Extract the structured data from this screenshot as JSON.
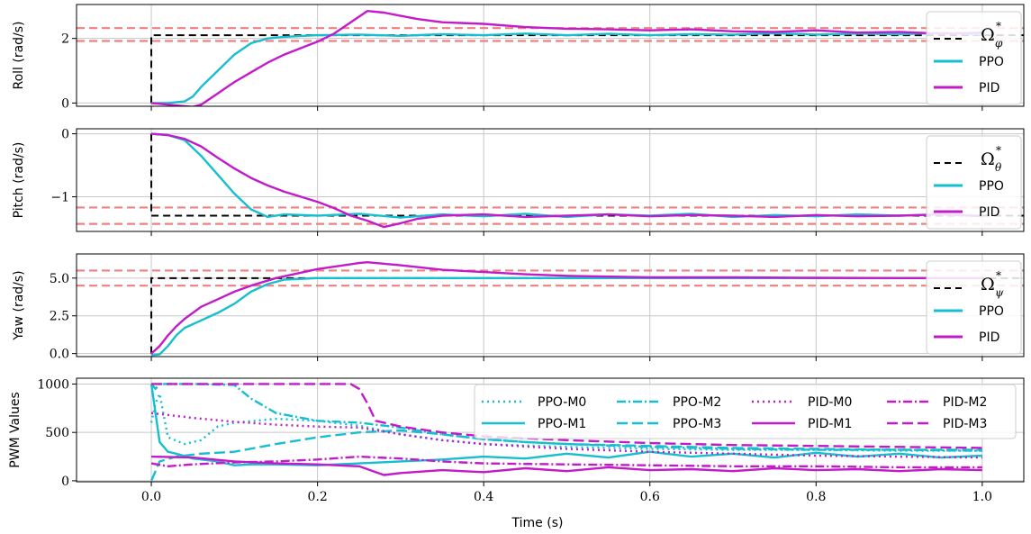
{
  "figure": {
    "xlabel": "Time (s)",
    "x_ticks": [
      "0.0",
      "0.2",
      "0.4",
      "0.6",
      "0.8",
      "1.0"
    ]
  },
  "chart_data": [
    {
      "type": "line",
      "ylabel": "Roll (rad/s)",
      "xlim": [
        -0.09,
        1.05
      ],
      "ylim": [
        -0.1,
        3.05
      ],
      "y_ticks": [
        0,
        2
      ],
      "y_tick_labels": [
        "0",
        "2"
      ],
      "grid": true,
      "legend_position": "right",
      "legend": {
        "ref_symbol": "Ω",
        "ref_superscript": "*",
        "ref_subscript": "φ",
        "items": [
          "PPO",
          "PID"
        ]
      },
      "reference": {
        "value": 2.1,
        "step_time": 0.0
      },
      "tolerance_band": [
        1.92,
        2.32
      ],
      "series": [
        {
          "name": "PPO",
          "color": "#17becf",
          "x": [
            0,
            0.02,
            0.04,
            0.05,
            0.06,
            0.08,
            0.1,
            0.12,
            0.14,
            0.16,
            0.2,
            0.25,
            0.3,
            0.35,
            0.4,
            0.45,
            0.5,
            0.55,
            0.6,
            0.65,
            0.7,
            0.75,
            0.8,
            0.85,
            0.9,
            0.95,
            1.0
          ],
          "y": [
            0,
            0,
            0.05,
            0.2,
            0.5,
            1.0,
            1.5,
            1.85,
            2.0,
            2.05,
            2.1,
            2.12,
            2.08,
            2.13,
            2.1,
            2.15,
            2.1,
            2.14,
            2.1,
            2.13,
            2.12,
            2.16,
            2.12,
            2.15,
            2.13,
            2.17,
            2.12
          ]
        },
        {
          "name": "PID",
          "color": "#c21bc9",
          "x": [
            0,
            0.02,
            0.04,
            0.05,
            0.06,
            0.08,
            0.1,
            0.12,
            0.14,
            0.16,
            0.18,
            0.2,
            0.22,
            0.24,
            0.26,
            0.28,
            0.3,
            0.32,
            0.35,
            0.4,
            0.45,
            0.5,
            0.55,
            0.6,
            0.65,
            0.7,
            0.75,
            0.8,
            0.85,
            0.9,
            0.95,
            1.0
          ],
          "y": [
            0,
            -0.05,
            -0.1,
            -0.12,
            -0.05,
            0.3,
            0.65,
            0.95,
            1.25,
            1.5,
            1.7,
            1.9,
            2.15,
            2.5,
            2.85,
            2.8,
            2.7,
            2.6,
            2.5,
            2.45,
            2.35,
            2.3,
            2.28,
            2.25,
            2.28,
            2.22,
            2.2,
            2.25,
            2.18,
            2.2,
            2.15,
            2.18
          ]
        }
      ]
    },
    {
      "type": "line",
      "ylabel": "Pitch (rad/s)",
      "xlim": [
        -0.09,
        1.05
      ],
      "ylim": [
        -1.55,
        0.08
      ],
      "y_ticks": [
        0,
        -1
      ],
      "y_tick_labels": [
        "0",
        "−1"
      ],
      "grid": true,
      "legend_position": "right",
      "legend": {
        "ref_symbol": "Ω",
        "ref_superscript": "*",
        "ref_subscript": "θ",
        "items": [
          "PPO",
          "PID"
        ]
      },
      "reference": {
        "value": -1.3,
        "step_time": 0.0
      },
      "tolerance_band": [
        -1.17,
        -1.43
      ],
      "series": [
        {
          "name": "PPO",
          "color": "#17becf",
          "x": [
            0,
            0.02,
            0.04,
            0.06,
            0.08,
            0.1,
            0.12,
            0.14,
            0.16,
            0.2,
            0.25,
            0.3,
            0.35,
            0.4,
            0.45,
            0.5,
            0.55,
            0.6,
            0.65,
            0.7,
            0.75,
            0.8,
            0.85,
            0.9,
            0.95,
            1.0
          ],
          "y": [
            0,
            -0.02,
            -0.1,
            -0.35,
            -0.65,
            -0.95,
            -1.2,
            -1.32,
            -1.28,
            -1.3,
            -1.27,
            -1.33,
            -1.28,
            -1.31,
            -1.27,
            -1.32,
            -1.28,
            -1.3,
            -1.27,
            -1.32,
            -1.29,
            -1.31,
            -1.28,
            -1.3,
            -1.28,
            -1.3
          ]
        },
        {
          "name": "PID",
          "color": "#c21bc9",
          "x": [
            0,
            0.02,
            0.04,
            0.06,
            0.08,
            0.1,
            0.12,
            0.14,
            0.16,
            0.18,
            0.2,
            0.22,
            0.24,
            0.26,
            0.28,
            0.3,
            0.32,
            0.35,
            0.4,
            0.45,
            0.5,
            0.55,
            0.6,
            0.65,
            0.7,
            0.75,
            0.8,
            0.85,
            0.9,
            0.95,
            1.0
          ],
          "y": [
            0,
            -0.02,
            -0.08,
            -0.2,
            -0.38,
            -0.55,
            -0.7,
            -0.82,
            -0.92,
            -1.0,
            -1.08,
            -1.18,
            -1.3,
            -1.38,
            -1.48,
            -1.42,
            -1.35,
            -1.3,
            -1.28,
            -1.32,
            -1.3,
            -1.28,
            -1.31,
            -1.29,
            -1.3,
            -1.32,
            -1.29,
            -1.31,
            -1.3,
            -1.28,
            -1.31
          ]
        }
      ]
    },
    {
      "type": "line",
      "ylabel": "Yaw (rad/s)",
      "xlim": [
        -0.09,
        1.05
      ],
      "ylim": [
        -0.2,
        6.6
      ],
      "y_ticks": [
        0,
        2.5,
        5
      ],
      "y_tick_labels": [
        "0.0",
        "2.5",
        "5.0"
      ],
      "grid": true,
      "legend_position": "right",
      "legend": {
        "ref_symbol": "Ω",
        "ref_superscript": "*",
        "ref_subscript": "ψ",
        "items": [
          "PPO",
          "PID"
        ]
      },
      "reference": {
        "value": 5.0,
        "step_time": 0.0
      },
      "tolerance_band": [
        4.5,
        5.5
      ],
      "series": [
        {
          "name": "PPO",
          "color": "#17becf",
          "x": [
            0,
            0.01,
            0.02,
            0.03,
            0.04,
            0.06,
            0.08,
            0.1,
            0.12,
            0.14,
            0.16,
            0.2,
            0.3,
            0.4,
            0.5,
            0.6,
            0.7,
            0.8,
            0.9,
            1.0
          ],
          "y": [
            -0.1,
            -0.05,
            0.5,
            1.2,
            1.7,
            2.2,
            2.7,
            3.3,
            4.1,
            4.6,
            4.9,
            5.0,
            5.0,
            5.0,
            5.0,
            5.0,
            5.0,
            5.0,
            5.0,
            5.0
          ]
        },
        {
          "name": "PID",
          "color": "#c21bc9",
          "x": [
            0,
            0.01,
            0.02,
            0.03,
            0.04,
            0.06,
            0.08,
            0.1,
            0.12,
            0.15,
            0.2,
            0.25,
            0.26,
            0.3,
            0.35,
            0.4,
            0.45,
            0.5,
            0.6,
            0.7,
            0.8,
            0.9,
            1.0
          ],
          "y": [
            0,
            0.5,
            1.2,
            1.8,
            2.3,
            3.1,
            3.6,
            4.1,
            4.5,
            5.0,
            5.6,
            6.0,
            6.05,
            5.85,
            5.55,
            5.4,
            5.25,
            5.15,
            5.05,
            5.05,
            5.02,
            5.0,
            5.0
          ]
        }
      ]
    },
    {
      "type": "line",
      "ylabel": "PWM Values",
      "xlim": [
        -0.09,
        1.05
      ],
      "ylim": [
        -10,
        1060
      ],
      "y_ticks": [
        0,
        500,
        1000
      ],
      "y_tick_labels": [
        "0",
        "500",
        "1000"
      ],
      "grid": true,
      "legend_position": "top-right",
      "legend": {
        "items": [
          "PPO-M0",
          "PPO-M1",
          "PPO-M2",
          "PPO-M3",
          "PID-M0",
          "PID-M1",
          "PID-M2",
          "PID-M3"
        ]
      },
      "series": [
        {
          "name": "PPO-M0",
          "color": "#17becf",
          "dash": "2,4",
          "x": [
            0,
            0.005,
            0.01,
            0.02,
            0.04,
            0.06,
            0.08,
            0.1,
            0.15,
            0.2,
            0.25,
            0.3,
            0.35,
            0.4,
            0.5,
            0.6,
            0.7,
            0.8,
            0.9,
            1.0
          ],
          "y": [
            600,
            800,
            900,
            450,
            380,
            420,
            560,
            600,
            640,
            620,
            570,
            480,
            420,
            380,
            350,
            330,
            320,
            320,
            310,
            310
          ]
        },
        {
          "name": "PPO-M1",
          "color": "#17becf",
          "dash": "",
          "x": [
            0,
            0.005,
            0.01,
            0.02,
            0.03,
            0.05,
            0.08,
            0.1,
            0.12,
            0.15,
            0.2,
            0.25,
            0.3,
            0.35,
            0.4,
            0.45,
            0.5,
            0.55,
            0.6,
            0.65,
            0.7,
            0.75,
            0.8,
            0.85,
            0.9,
            0.95,
            1.0
          ],
          "y": [
            1000,
            700,
            400,
            300,
            280,
            230,
            200,
            160,
            170,
            170,
            160,
            180,
            200,
            220,
            250,
            230,
            280,
            240,
            300,
            250,
            280,
            240,
            290,
            250,
            280,
            240,
            260
          ]
        },
        {
          "name": "PPO-M2",
          "color": "#17becf",
          "dash": "10,3,2,3",
          "x": [
            0,
            0.005,
            0.01,
            0.05,
            0.1,
            0.12,
            0.15,
            0.2,
            0.25,
            0.3,
            0.35,
            0.4,
            0.45,
            0.5,
            0.6,
            0.7,
            0.8,
            0.9,
            1.0
          ],
          "y": [
            1000,
            950,
            1000,
            1000,
            990,
            850,
            700,
            620,
            600,
            550,
            480,
            430,
            400,
            380,
            350,
            330,
            320,
            320,
            310
          ]
        },
        {
          "name": "PPO-M3",
          "color": "#17becf",
          "dash": "12,5",
          "x": [
            0,
            0.01,
            0.03,
            0.06,
            0.1,
            0.15,
            0.2,
            0.25,
            0.3,
            0.35,
            0.4,
            0.45,
            0.5,
            0.6,
            0.7,
            0.8,
            0.9,
            1.0
          ],
          "y": [
            0,
            200,
            250,
            280,
            300,
            380,
            450,
            500,
            520,
            480,
            430,
            400,
            380,
            360,
            340,
            330,
            320,
            320
          ]
        },
        {
          "name": "PID-M0",
          "color": "#c21bc9",
          "dash": "2,4",
          "x": [
            0,
            0.02,
            0.05,
            0.1,
            0.15,
            0.2,
            0.25,
            0.3,
            0.35,
            0.4,
            0.5,
            0.6,
            0.7,
            0.8,
            0.9,
            1.0
          ],
          "y": [
            700,
            680,
            650,
            610,
            580,
            560,
            550,
            480,
            420,
            380,
            330,
            300,
            280,
            260,
            250,
            240
          ]
        },
        {
          "name": "PID-M1",
          "color": "#c21bc9",
          "dash": "",
          "x": [
            0,
            0.05,
            0.1,
            0.15,
            0.2,
            0.25,
            0.26,
            0.28,
            0.3,
            0.35,
            0.4,
            0.45,
            0.5,
            0.55,
            0.6,
            0.65,
            0.7,
            0.75,
            0.8,
            0.85,
            0.9,
            0.95,
            1.0
          ],
          "y": [
            250,
            240,
            200,
            180,
            170,
            150,
            120,
            60,
            80,
            110,
            90,
            130,
            100,
            140,
            110,
            120,
            100,
            130,
            110,
            120,
            100,
            120,
            110
          ]
        },
        {
          "name": "PID-M2",
          "color": "#c21bc9",
          "dash": "10,3,2,3",
          "x": [
            0,
            0.02,
            0.05,
            0.1,
            0.15,
            0.2,
            0.25,
            0.3,
            0.35,
            0.4,
            0.5,
            0.6,
            0.7,
            0.8,
            0.9,
            1.0
          ],
          "y": [
            180,
            150,
            170,
            190,
            200,
            220,
            250,
            230,
            200,
            180,
            170,
            160,
            150,
            150,
            140,
            140
          ]
        },
        {
          "name": "PID-M3",
          "color": "#c21bc9",
          "dash": "12,5",
          "x": [
            0,
            0.05,
            0.1,
            0.15,
            0.2,
            0.24,
            0.25,
            0.26,
            0.27,
            0.3,
            0.35,
            0.4,
            0.5,
            0.6,
            0.7,
            0.8,
            0.9,
            1.0
          ],
          "y": [
            1000,
            1000,
            1000,
            1000,
            1000,
            1000,
            950,
            800,
            620,
            560,
            500,
            460,
            420,
            390,
            370,
            360,
            350,
            340
          ]
        }
      ]
    }
  ]
}
